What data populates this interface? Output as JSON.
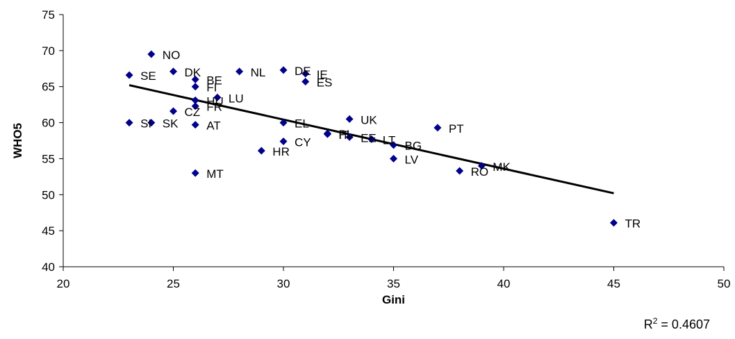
{
  "chart_data": {
    "type": "scatter",
    "xlabel": "Gini",
    "ylabel": "WHO5",
    "xlim": [
      20,
      50
    ],
    "ylim": [
      40,
      75
    ],
    "xticks": [
      20,
      25,
      30,
      35,
      40,
      45,
      50
    ],
    "yticks": [
      40,
      45,
      50,
      55,
      60,
      65,
      70,
      75
    ],
    "grid": false,
    "marker_color": "#00008B",
    "points": [
      {
        "label": "NO",
        "x": 24,
        "y": 69.5
      },
      {
        "label": "SE",
        "x": 23,
        "y": 66.6
      },
      {
        "label": "DK",
        "x": 25,
        "y": 67.1
      },
      {
        "label": "BE",
        "x": 26,
        "y": 66.0
      },
      {
        "label": "FI",
        "x": 26,
        "y": 65.0
      },
      {
        "label": "HU",
        "x": 26,
        "y": 63.1
      },
      {
        "label": "FR",
        "x": 26,
        "y": 62.3
      },
      {
        "label": "LU",
        "x": 27,
        "y": 63.5
      },
      {
        "label": "NL",
        "x": 28,
        "y": 67.1
      },
      {
        "label": "DE",
        "x": 30,
        "y": 67.3
      },
      {
        "label": "IE",
        "x": 31,
        "y": 66.8
      },
      {
        "label": "ES",
        "x": 31,
        "y": 65.7
      },
      {
        "label": "CZ",
        "x": 25,
        "y": 61.6
      },
      {
        "label": "SI",
        "x": 23,
        "y": 60.0
      },
      {
        "label": "SK",
        "x": 24,
        "y": 60.0
      },
      {
        "label": "AT",
        "x": 26,
        "y": 59.7
      },
      {
        "label": "EL",
        "x": 30,
        "y": 60.0
      },
      {
        "label": "UK",
        "x": 33,
        "y": 60.5
      },
      {
        "label": "PL",
        "x": 32,
        "y": 58.5
      },
      {
        "label": "IT",
        "x": 32,
        "y": 58.4
      },
      {
        "label": "EE",
        "x": 33,
        "y": 58.0
      },
      {
        "label": "LT",
        "x": 34,
        "y": 57.7
      },
      {
        "label": "BG",
        "x": 35,
        "y": 56.9
      },
      {
        "label": "PT",
        "x": 37,
        "y": 59.3
      },
      {
        "label": "CY",
        "x": 30,
        "y": 57.4
      },
      {
        "label": "HR",
        "x": 29,
        "y": 56.1
      },
      {
        "label": "LV",
        "x": 35,
        "y": 55.0
      },
      {
        "label": "MT",
        "x": 26,
        "y": 53.0
      },
      {
        "label": "RO",
        "x": 38,
        "y": 53.3
      },
      {
        "label": "MK",
        "x": 39,
        "y": 54.0
      },
      {
        "label": "TR",
        "x": 45,
        "y": 46.1
      }
    ],
    "trendline": {
      "type": "linear",
      "x": [
        23,
        45
      ],
      "y": [
        65.2,
        50.2
      ]
    },
    "r_squared_label": "= 0.4607",
    "r_squared_prefix": "R",
    "r_squared_sup": "2"
  }
}
